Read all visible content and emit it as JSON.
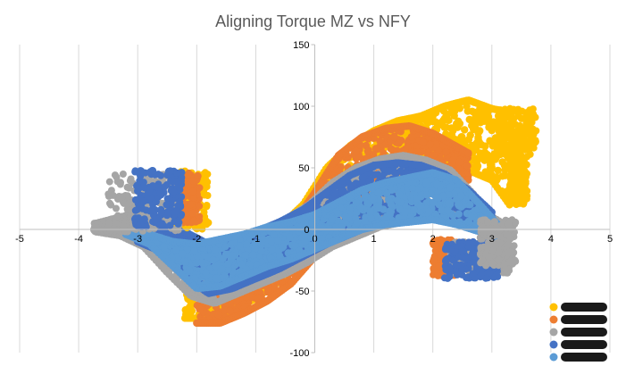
{
  "chart_data": {
    "type": "scatter",
    "title": "Aligning Torque MZ vs NFY",
    "xlabel": "",
    "ylabel": "",
    "xlim": [
      -5,
      5
    ],
    "ylim": [
      -100,
      150
    ],
    "x_ticks": [
      "-5",
      "-4",
      "-3",
      "-2",
      "-1",
      "0",
      "1",
      "2",
      "3",
      "4",
      "5"
    ],
    "y_ticks": [
      "150",
      "100",
      "50",
      "0",
      "-50",
      "-100"
    ],
    "grid": "vertical",
    "legend_position": "bottom-right",
    "legend_labels_redacted": true,
    "series": [
      {
        "color": "#FFC000",
        "band": {
          "x": [
            -2.2,
            -1.8,
            -1.4,
            -1.0,
            -0.6,
            -0.2,
            0.2,
            0.6,
            1.0,
            1.4,
            1.8,
            2.2,
            2.6,
            3.0,
            3.3
          ],
          "upper": [
            -22,
            -18,
            -12,
            -6,
            2,
            20,
            50,
            68,
            80,
            88,
            92,
            100,
            105,
            98,
            95
          ],
          "lower": [
            -72,
            -72,
            -66,
            -56,
            -42,
            -20,
            -6,
            8,
            20,
            32,
            40,
            45,
            48,
            40,
            20
          ]
        }
      },
      {
        "color": "#ED7D31",
        "band": {
          "x": [
            -2.0,
            -1.6,
            -1.2,
            -0.8,
            -0.4,
            0.0,
            0.4,
            0.8,
            1.2,
            1.6,
            2.0,
            2.3,
            2.6
          ],
          "upper": [
            -24,
            -20,
            -14,
            -8,
            2,
            30,
            60,
            75,
            82,
            84,
            78,
            70,
            62
          ],
          "lower": [
            -76,
            -76,
            -68,
            -58,
            -44,
            -22,
            -8,
            6,
            20,
            30,
            36,
            40,
            40
          ]
        }
      },
      {
        "color": "#A5A5A5",
        "band": {
          "x": [
            -3.7,
            -3.3,
            -2.9,
            -2.5,
            -2.1,
            -1.7,
            -1.3,
            -0.9,
            -0.5,
            -0.1,
            0.3,
            0.7,
            1.1,
            1.5,
            1.9,
            2.3,
            2.7,
            3.0,
            3.3
          ],
          "upper": [
            5,
            10,
            14,
            -5,
            -14,
            -12,
            -6,
            0,
            8,
            20,
            38,
            50,
            57,
            60,
            56,
            48,
            28,
            10,
            2
          ],
          "lower": [
            -2,
            -5,
            -14,
            -35,
            -54,
            -60,
            -52,
            -44,
            -36,
            -26,
            -14,
            -6,
            2,
            6,
            10,
            8,
            2,
            -8,
            -20
          ]
        }
      },
      {
        "color": "#4472C4",
        "band": {
          "x": [
            -3.0,
            -2.6,
            -2.2,
            -1.8,
            -1.4,
            -1.0,
            -0.6,
            -0.2,
            0.2,
            0.6,
            1.0,
            1.4,
            1.8,
            2.2,
            2.6,
            3.0
          ],
          "upper": [
            4,
            2,
            -2,
            -12,
            -8,
            -2,
            6,
            16,
            30,
            44,
            52,
            54,
            52,
            45,
            32,
            14
          ],
          "lower": [
            -10,
            -18,
            -38,
            -52,
            -48,
            -40,
            -32,
            -22,
            -12,
            -4,
            4,
            10,
            12,
            10,
            4,
            -4
          ]
        }
      },
      {
        "color": "#5B9BD5",
        "band": {
          "x": [
            -3.2,
            -2.8,
            -2.4,
            -2.0,
            -1.6,
            -1.2,
            -0.8,
            -0.4,
            0.0,
            0.4,
            0.8,
            1.2,
            1.6,
            2.0,
            2.4,
            2.8,
            3.1
          ],
          "upper": [
            0,
            -4,
            -10,
            -12,
            -8,
            -4,
            2,
            6,
            12,
            22,
            32,
            38,
            42,
            46,
            40,
            20,
            4
          ],
          "lower": [
            -4,
            -12,
            -30,
            -48,
            -46,
            -38,
            -30,
            -24,
            -16,
            -8,
            0,
            4,
            6,
            8,
            4,
            -2,
            -6
          ]
        }
      }
    ],
    "clusters": [
      {
        "color": "#FFC000",
        "x": [
          -2.4,
          -1.8
        ],
        "y": [
          0,
          48
        ]
      },
      {
        "color": "#ED7D31",
        "x": [
          -2.35,
          -1.95
        ],
        "y": [
          5,
          46
        ]
      },
      {
        "color": "#A5A5A5",
        "x": [
          -3.5,
          -2.3
        ],
        "y": [
          -2,
          45
        ]
      },
      {
        "color": "#4472C4",
        "x": [
          -3.05,
          -2.25
        ],
        "y": [
          2,
          48
        ]
      },
      {
        "color": "#ED7D31",
        "x": [
          2.0,
          2.4
        ],
        "y": [
          -38,
          -8
        ]
      },
      {
        "color": "#A5A5A5",
        "x": [
          2.3,
          3.3
        ],
        "y": [
          -36,
          -10
        ]
      },
      {
        "color": "#4472C4",
        "x": [
          2.2,
          3.1
        ],
        "y": [
          -40,
          -10
        ]
      },
      {
        "color": "#A5A5A5",
        "x": [
          2.8,
          3.4
        ],
        "y": [
          -30,
          8
        ]
      },
      {
        "color": "#FFC000",
        "x": [
          3.1,
          3.75
        ],
        "y": [
          60,
          98
        ]
      },
      {
        "color": "#FFC000",
        "x": [
          3.3,
          3.6
        ],
        "y": [
          20,
          60
        ]
      },
      {
        "color": "#A5A5A5",
        "x": [
          -3.75,
          -3.2
        ],
        "y": [
          -2,
          6
        ]
      }
    ]
  }
}
